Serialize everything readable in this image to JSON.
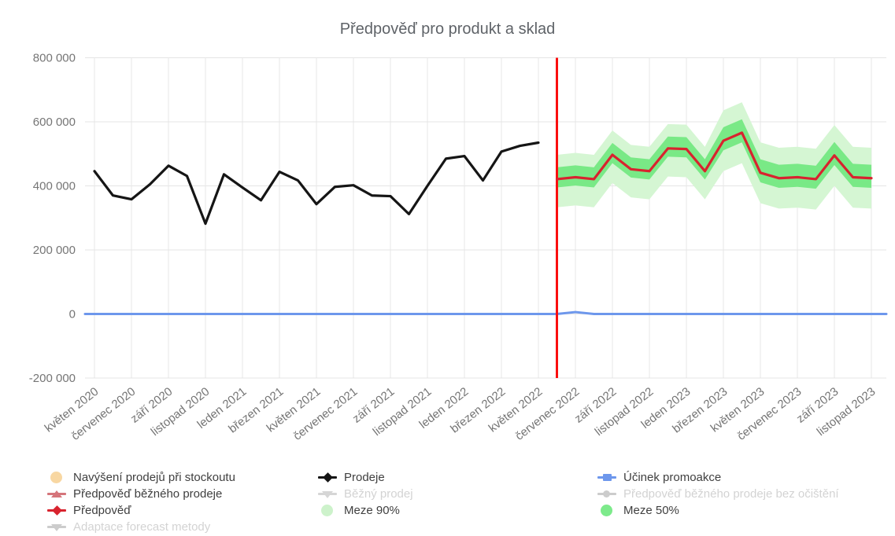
{
  "chart_data": {
    "type": "line",
    "title": "Předpověď pro produkt a sklad",
    "x_axis": {
      "start_month": "květen 2020",
      "end_month": "listopad 2023",
      "total_months": 43,
      "tick_every_months": 2,
      "tick_labels": [
        "květen 2020",
        "červenec 2020",
        "září 2020",
        "listopad 2020",
        "leden 2021",
        "březen 2021",
        "květen 2021",
        "červenec 2021",
        "září 2021",
        "listopad 2021",
        "leden 2022",
        "březen 2022",
        "květen 2022",
        "červenec 2022",
        "září 2022",
        "listopad 2022",
        "leden 2023",
        "březen 2023",
        "květen 2023",
        "červenec 2023",
        "září 2023",
        "listopad 2023"
      ]
    },
    "y_axis": {
      "range": [
        -200000,
        800000
      ],
      "ticks": [
        {
          "value": 800000,
          "label": "800 000"
        },
        {
          "value": 600000,
          "label": "600 000"
        },
        {
          "value": 400000,
          "label": "400 000"
        },
        {
          "value": 200000,
          "label": "200 000"
        },
        {
          "value": 0,
          "label": "0"
        },
        {
          "value": -200000,
          "label": "-200 000"
        }
      ],
      "grid": true
    },
    "forecast_divider": {
      "month": "červen 2022",
      "month_index": 25,
      "color": "#fa0f0f"
    },
    "series": [
      {
        "name": "Prodeje",
        "role": "sales",
        "color": "#151515",
        "start_month_index": 0,
        "values": [
          446000,
          370000,
          358000,
          405000,
          463000,
          431000,
          282000,
          436000,
          395000,
          355000,
          444000,
          417000,
          343000,
          397000,
          402000,
          370000,
          368000,
          312000,
          400000,
          485000,
          493000,
          417000,
          507000,
          525000,
          535000
        ]
      },
      {
        "name": "Předpověď",
        "role": "forecast",
        "color": "#d8232e",
        "start_month_index": 25,
        "values": [
          421000,
          427000,
          421000,
          497000,
          452000,
          446000,
          517000,
          515000,
          446000,
          541000,
          566000,
          441000,
          424000,
          427000,
          421000,
          495000,
          427000,
          424000
        ]
      },
      {
        "name": "Účinek promoakce",
        "role": "promo",
        "color": "#6d97ec",
        "start_month_index": 0,
        "values": [
          0,
          0,
          0,
          0,
          0,
          0,
          0,
          0,
          0,
          0,
          0,
          0,
          0,
          0,
          0,
          0,
          0,
          0,
          0,
          0,
          0,
          0,
          0,
          0,
          0,
          0,
          6000,
          0,
          0,
          0,
          0,
          0,
          0,
          0,
          0,
          0,
          0,
          0,
          0,
          0,
          0,
          0,
          0
        ]
      }
    ],
    "bands": [
      {
        "name": "Meze 90%",
        "color": "#d5f6d3",
        "start_month_index": 25,
        "upper": [
          497000,
          503000,
          497000,
          573000,
          528000,
          522000,
          593000,
          591000,
          522000,
          636000,
          661000,
          536000,
          519000,
          522000,
          516000,
          590000,
          522000,
          519000
        ],
        "lower": [
          333000,
          339000,
          333000,
          409000,
          364000,
          358000,
          429000,
          427000,
          358000,
          446000,
          471000,
          346000,
          329000,
          332000,
          326000,
          400000,
          332000,
          329000
        ]
      },
      {
        "name": "Meze 50%",
        "color": "#79e986",
        "start_month_index": 25,
        "upper": [
          458000,
          464000,
          458000,
          534000,
          489000,
          483000,
          554000,
          552000,
          483000,
          583000,
          608000,
          483000,
          466000,
          469000,
          463000,
          537000,
          469000,
          466000
        ],
        "lower": [
          395000,
          401000,
          395000,
          471000,
          426000,
          420000,
          491000,
          489000,
          420000,
          511000,
          536000,
          411000,
          394000,
          397000,
          391000,
          465000,
          397000,
          394000
        ]
      }
    ],
    "legend_position": "bottom"
  },
  "legend": {
    "text_color": "#3f3f3f",
    "disabled_text_color": "#d3d3d3",
    "columns": [
      {
        "items": [
          {
            "label": "Navýšení prodejů při stockoutu",
            "marker": "circle",
            "color": "#f8d7a2",
            "disabled": false
          },
          {
            "label": "Předpověď běžného prodeje",
            "marker": "line-triangle-up",
            "color": "#d5757b",
            "disabled": false
          },
          {
            "label": "Předpověď",
            "marker": "line-diamond",
            "color": "#d8232e",
            "disabled": false
          },
          {
            "label": "Adaptace forecast metody",
            "marker": "line-triangle-down",
            "color": "#cccccc",
            "disabled": true
          }
        ]
      },
      {
        "items": [
          {
            "label": "Prodeje",
            "marker": "line-diamond",
            "color": "#151515",
            "disabled": false
          },
          {
            "label": "Běžný prodej",
            "marker": "line-triangle-down",
            "color": "#d6d6d6",
            "disabled": true
          },
          {
            "label": "Meze 90%",
            "marker": "circle",
            "color": "#cdf2cb",
            "disabled": false
          }
        ]
      },
      {
        "items": [
          {
            "label": "Účinek promoakce",
            "marker": "line-square",
            "color": "#6d97ec",
            "disabled": false
          },
          {
            "label": "Předpověď běžného prodeje bez očištění",
            "marker": "line-circle",
            "color": "#cccccc",
            "disabled": true
          },
          {
            "label": "Meze 50%",
            "marker": "circle",
            "color": "#7dea8b",
            "disabled": false
          }
        ]
      }
    ]
  }
}
